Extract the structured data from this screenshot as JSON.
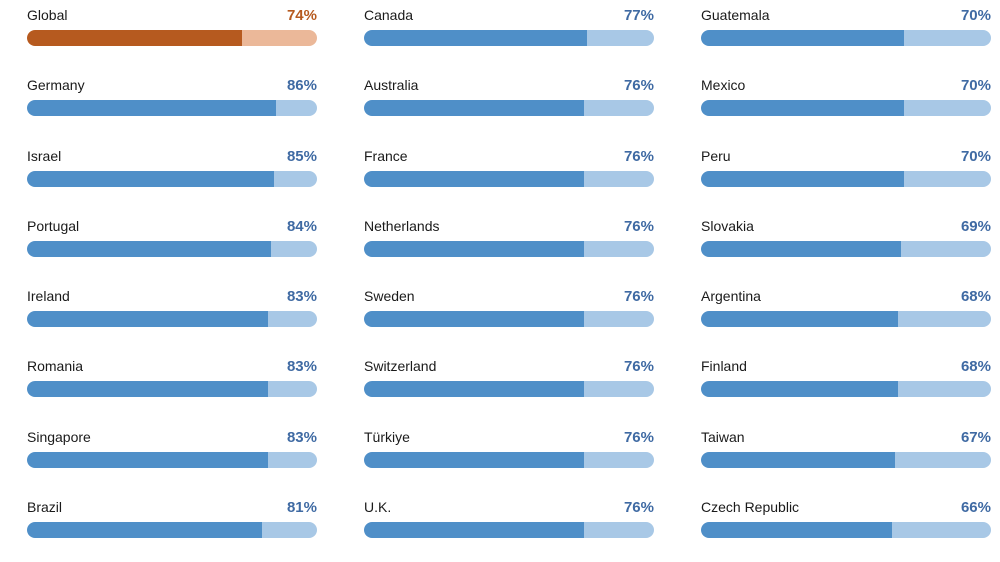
{
  "colors": {
    "fill": "#4f8fc8",
    "track": "#a8c8e6",
    "percent_text": "#3f6aa3",
    "highlight_fill": "#b65a1f",
    "highlight_track": "#ebb899",
    "highlight_text": "#b65a1f"
  },
  "chart_data": {
    "type": "bar",
    "orientation": "horizontal",
    "unit": "%",
    "ylim": [
      0,
      100
    ],
    "highlighted_category": "Global",
    "columns": [
      [
        {
          "label": "Global",
          "value": 74,
          "display": "74%"
        },
        {
          "label": "Germany",
          "value": 86,
          "display": "86%"
        },
        {
          "label": "Israel",
          "value": 85,
          "display": "85%"
        },
        {
          "label": "Portugal",
          "value": 84,
          "display": "84%"
        },
        {
          "label": "Ireland",
          "value": 83,
          "display": "83%"
        },
        {
          "label": "Romania",
          "value": 83,
          "display": "83%"
        },
        {
          "label": "Singapore",
          "value": 83,
          "display": "83%"
        },
        {
          "label": "Brazil",
          "value": 81,
          "display": "81%"
        }
      ],
      [
        {
          "label": "Canada",
          "value": 77,
          "display": "77%"
        },
        {
          "label": "Australia",
          "value": 76,
          "display": "76%"
        },
        {
          "label": "France",
          "value": 76,
          "display": "76%"
        },
        {
          "label": "Netherlands",
          "value": 76,
          "display": "76%"
        },
        {
          "label": "Sweden",
          "value": 76,
          "display": "76%"
        },
        {
          "label": "Switzerland",
          "value": 76,
          "display": "76%"
        },
        {
          "label": "Türkiye",
          "value": 76,
          "display": "76%"
        },
        {
          "label": "U.K.",
          "value": 76,
          "display": "76%"
        }
      ],
      [
        {
          "label": "Guatemala",
          "value": 70,
          "display": "70%"
        },
        {
          "label": "Mexico",
          "value": 70,
          "display": "70%"
        },
        {
          "label": "Peru",
          "value": 70,
          "display": "70%"
        },
        {
          "label": "Slovakia",
          "value": 69,
          "display": "69%"
        },
        {
          "label": "Argentina",
          "value": 68,
          "display": "68%"
        },
        {
          "label": "Finland",
          "value": 68,
          "display": "68%"
        },
        {
          "label": "Taiwan",
          "value": 67,
          "display": "67%"
        },
        {
          "label": "Czech Republic",
          "value": 66,
          "display": "66%"
        }
      ]
    ]
  }
}
